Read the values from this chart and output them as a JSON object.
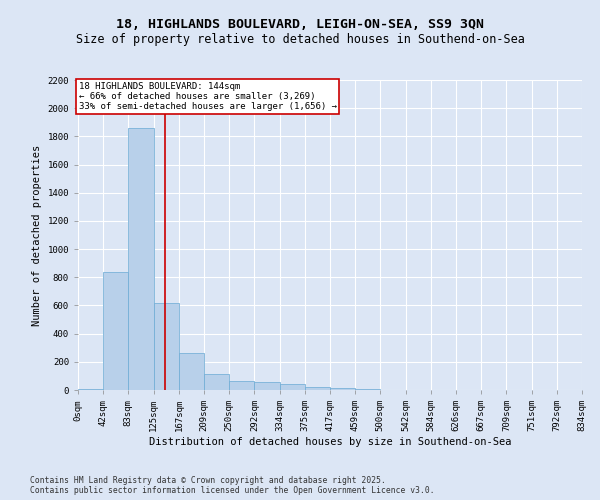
{
  "title": "18, HIGHLANDS BOULEVARD, LEIGH-ON-SEA, SS9 3QN",
  "subtitle": "Size of property relative to detached houses in Southend-on-Sea",
  "xlabel": "Distribution of detached houses by size in Southend-on-Sea",
  "ylabel": "Number of detached properties",
  "bar_edges": [
    0,
    42,
    83,
    125,
    167,
    209,
    250,
    292,
    334,
    375,
    417,
    459,
    500,
    542,
    584,
    626,
    667,
    709,
    751,
    792,
    834
  ],
  "bar_heights": [
    10,
    838,
    1856,
    620,
    260,
    115,
    65,
    55,
    45,
    20,
    15,
    5,
    0,
    0,
    0,
    0,
    0,
    0,
    0,
    0
  ],
  "bar_color": "#b8d0ea",
  "bar_edge_color": "#6aaad4",
  "vline_x": 144,
  "vline_color": "#cc0000",
  "annotation_text": "18 HIGHLANDS BOULEVARD: 144sqm\n← 66% of detached houses are smaller (3,269)\n33% of semi-detached houses are larger (1,656) →",
  "annotation_box_color": "#ffffff",
  "annotation_box_edge": "#cc0000",
  "ylim": [
    0,
    2200
  ],
  "yticks": [
    0,
    200,
    400,
    600,
    800,
    1000,
    1200,
    1400,
    1600,
    1800,
    2000,
    2200
  ],
  "footnote": "Contains HM Land Registry data © Crown copyright and database right 2025.\nContains public sector information licensed under the Open Government Licence v3.0.",
  "bg_color": "#dce6f5",
  "plot_bg_color": "#dce6f5",
  "grid_color": "#ffffff",
  "title_fontsize": 9.5,
  "subtitle_fontsize": 8.5,
  "label_fontsize": 7.5,
  "tick_fontsize": 6.5,
  "footnote_fontsize": 5.8
}
